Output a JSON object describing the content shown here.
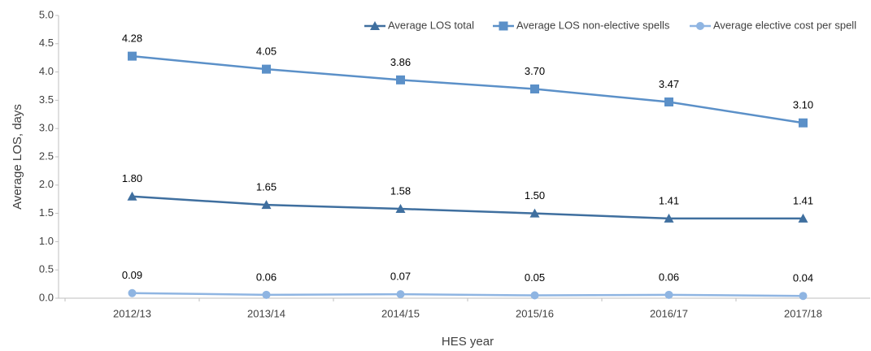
{
  "chart_data": {
    "type": "line",
    "x_label": "HES year",
    "y_label": "Average LOS, days",
    "categories": [
      "2012/13",
      "2013/14",
      "2014/15",
      "2015/16",
      "2016/17",
      "2017/18"
    ],
    "series": [
      {
        "name": "Average LOS total",
        "color": "#3f6f9f",
        "marker": "triangle",
        "values": [
          1.8,
          1.65,
          1.58,
          1.5,
          1.41,
          1.41
        ],
        "value_labels": [
          "1.80",
          "1.65",
          "1.58",
          "1.50",
          "1.41",
          "1.41"
        ]
      },
      {
        "name": "Average LOS non-elective spells",
        "color": "#5b90c8",
        "marker": "square",
        "values": [
          4.28,
          4.05,
          3.86,
          3.7,
          3.47,
          3.1
        ],
        "value_labels": [
          "4.28",
          "4.05",
          "3.86",
          "3.70",
          "3.47",
          "3.10"
        ]
      },
      {
        "name": "Average elective cost per spell",
        "color": "#8fb5e2",
        "marker": "circle",
        "values": [
          0.09,
          0.06,
          0.07,
          0.05,
          0.06,
          0.04
        ],
        "value_labels": [
          "0.09",
          "0.06",
          "0.07",
          "0.05",
          "0.06",
          "0.04"
        ]
      }
    ],
    "ylim": [
      0,
      5
    ],
    "yticks": [
      {
        "value": 0,
        "label": "0.0"
      },
      {
        "value": 0.5,
        "label": "0.5"
      },
      {
        "value": 1,
        "label": "1.0"
      },
      {
        "value": 1.5,
        "label": "1.5"
      },
      {
        "value": 2,
        "label": "2.0"
      },
      {
        "value": 2.5,
        "label": "2.5"
      },
      {
        "value": 3,
        "label": "3.0"
      },
      {
        "value": 3.5,
        "label": "3.5"
      },
      {
        "value": 4,
        "label": "4.0"
      },
      {
        "value": 4.5,
        "label": "4.5"
      },
      {
        "value": 5,
        "label": "5.0"
      }
    ],
    "grid": false,
    "legend": "upper right"
  }
}
